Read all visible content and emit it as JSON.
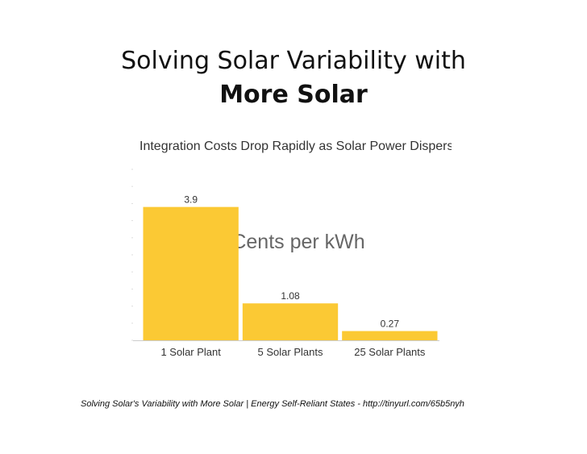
{
  "slide": {
    "title_line1": "Solving Solar Variability with",
    "title_line2": "More Solar",
    "footer": "Solving Solar's Variability with More Solar | Energy Self-Reliant States - http://tinyurl.com/65b5nyh"
  },
  "chart_data": {
    "type": "bar",
    "title": "Integration Costs Drop Rapidly as Solar Power Disperses",
    "subtitle": "Cents per kWh",
    "categories": [
      "1 Solar Plant",
      "5 Solar Plants",
      "25 Solar Plants"
    ],
    "values": [
      3.9,
      1.08,
      0.27
    ],
    "value_labels": [
      "3.9",
      "1.08",
      "0.27"
    ],
    "ylim": [
      0,
      5
    ],
    "grid": false,
    "bar_color": "#fbc934",
    "xlabel": "",
    "ylabel": ""
  }
}
